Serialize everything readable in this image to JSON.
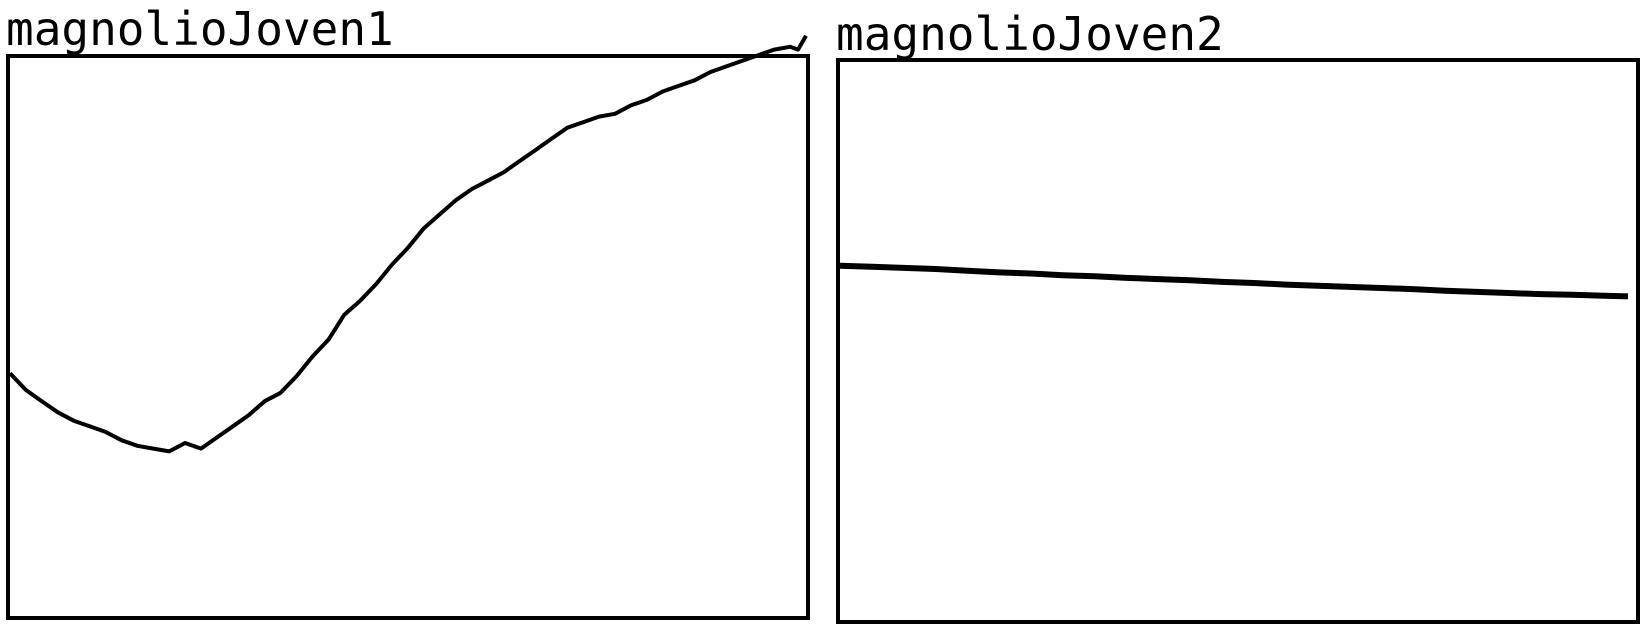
{
  "chart_data": [
    {
      "type": "line",
      "title": "magnolioJoven1",
      "xlabel": "",
      "ylabel": "",
      "grid": false,
      "legend": "none",
      "axes_ticks": false,
      "line_color": "#000000",
      "xlim": [
        0,
        100
      ],
      "ylim": [
        0,
        100
      ],
      "series": [
        {
          "x": [
            0,
            2,
            4,
            6,
            8,
            10,
            12,
            14,
            16,
            18,
            20,
            22,
            24,
            25,
            26,
            28,
            30,
            32,
            34,
            36,
            38,
            40,
            42,
            44,
            46,
            48,
            50,
            52,
            54,
            56,
            58,
            60,
            62,
            64,
            66,
            68,
            70,
            72,
            74,
            76,
            78,
            80,
            82,
            84,
            86,
            88,
            90,
            92,
            94,
            96,
            98,
            99,
            100
          ],
          "y": [
            43.5,
            40.5,
            38.5,
            36.5,
            35,
            34,
            33,
            31.5,
            30.5,
            30,
            29.5,
            31,
            30,
            31,
            32,
            34,
            36,
            38.5,
            40,
            43,
            46.5,
            49.5,
            54,
            56.5,
            59.5,
            63,
            66,
            69.5,
            72,
            74.5,
            76.5,
            78,
            79.5,
            81.5,
            83.5,
            85.5,
            87.5,
            88.5,
            89.5,
            90,
            91.5,
            92.5,
            94,
            95,
            96,
            97.5,
            98.5,
            99.5,
            100.5,
            101.5,
            102,
            101.5,
            104
          ]
        }
      ]
    },
    {
      "type": "line",
      "title": "magnolioJoven2",
      "xlabel": "",
      "ylabel": "",
      "grid": false,
      "legend": "none",
      "axes_ticks": false,
      "line_color": "#000000",
      "xlim": [
        0,
        100
      ],
      "ylim": [
        0,
        100
      ],
      "series": [
        {
          "x": [
            0,
            4,
            8,
            12,
            16,
            20,
            24,
            28,
            32,
            36,
            40,
            44,
            48,
            52,
            56,
            60,
            64,
            68,
            72,
            76,
            80,
            84,
            88,
            92,
            96,
            99
          ],
          "y": [
            63.5,
            63.3,
            63.1,
            62.9,
            62.6,
            62.3,
            62.1,
            61.8,
            61.6,
            61.3,
            61.1,
            60.9,
            60.6,
            60.4,
            60.1,
            59.9,
            59.7,
            59.5,
            59.3,
            59.0,
            58.8,
            58.6,
            58.4,
            58.3,
            58.1,
            58.0
          ]
        }
      ]
    }
  ]
}
